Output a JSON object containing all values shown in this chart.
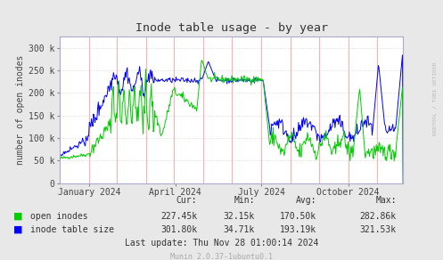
{
  "title": "Inode table usage - by year",
  "ylabel": "number of open inodes",
  "background_color": "#e8e8e8",
  "plot_bg_color": "#ffffff",
  "grid_red_color": "#ffb0b0",
  "ylim": [
    0,
    325000
  ],
  "yticks": [
    0,
    50000,
    100000,
    150000,
    200000,
    250000,
    300000
  ],
  "ytick_labels": [
    "0",
    "50 k",
    "100 k",
    "150 k",
    "200 k",
    "250 k",
    "300 k"
  ],
  "xtick_labels": [
    "January 2024",
    "April 2024",
    "July 2024",
    "October 2024"
  ],
  "stats": {
    "headers": [
      "Cur:",
      "Min:",
      "Avg:",
      "Max:"
    ],
    "open_inodes": [
      "227.45k",
      "32.15k",
      "170.50k",
      "282.86k"
    ],
    "inode_table_size": [
      "301.80k",
      "34.71k",
      "193.19k",
      "321.53k"
    ]
  },
  "footer": "Last update: Thu Nov 28 01:00:14 2024",
  "munin_version": "Munin 2.0.37-1ubuntu0.1",
  "rrdtool_label": "RRDTOOL / TOBI OETIKER",
  "green_color": "#00cc00",
  "blue_color": "#0000ff"
}
